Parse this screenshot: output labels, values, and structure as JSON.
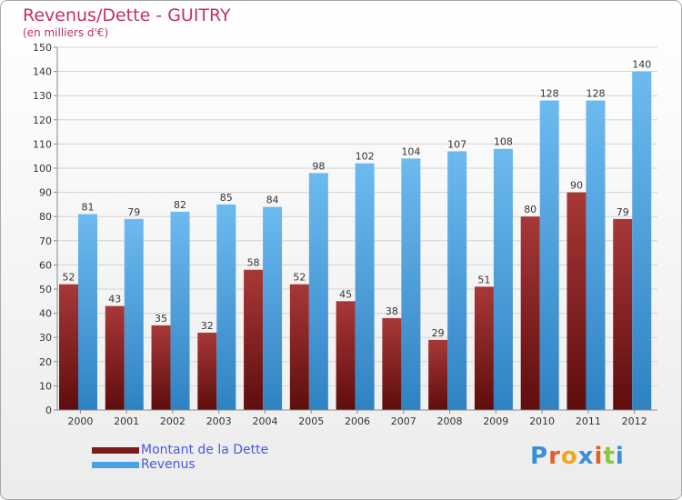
{
  "header": {
    "title": "Revenus/Dette - GUITRY",
    "subtitle": "(en milliers d'€)"
  },
  "legend": {
    "debt_label": "Montant de la Dette",
    "revenue_label": "Revenus"
  },
  "logo": {
    "text": "Proxiti"
  },
  "colors": {
    "debt": "#7a1c1c",
    "debt_light": "#a83838",
    "revenue": "#4aa2e0",
    "revenue_light": "#6dbaf0",
    "title": "#c0306a"
  },
  "chart_data": {
    "type": "bar",
    "title": "Revenus/Dette - GUITRY",
    "ylabel": "(en milliers d'€)",
    "xlabel": "",
    "ylim": [
      0,
      150
    ],
    "yticks": [
      0,
      10,
      20,
      30,
      40,
      50,
      60,
      70,
      80,
      90,
      100,
      110,
      120,
      130,
      140,
      150
    ],
    "grid": true,
    "categories": [
      "2000",
      "2001",
      "2002",
      "2003",
      "2004",
      "2005",
      "2006",
      "2007",
      "2008",
      "2009",
      "2010",
      "2011",
      "2012"
    ],
    "series": [
      {
        "name": "Montant de la Dette",
        "values": [
          52,
          43,
          35,
          32,
          58,
          52,
          45,
          38,
          29,
          51,
          80,
          90,
          79
        ]
      },
      {
        "name": "Revenus",
        "values": [
          81,
          79,
          82,
          85,
          84,
          98,
          102,
          104,
          107,
          108,
          128,
          128,
          140
        ]
      }
    ]
  }
}
